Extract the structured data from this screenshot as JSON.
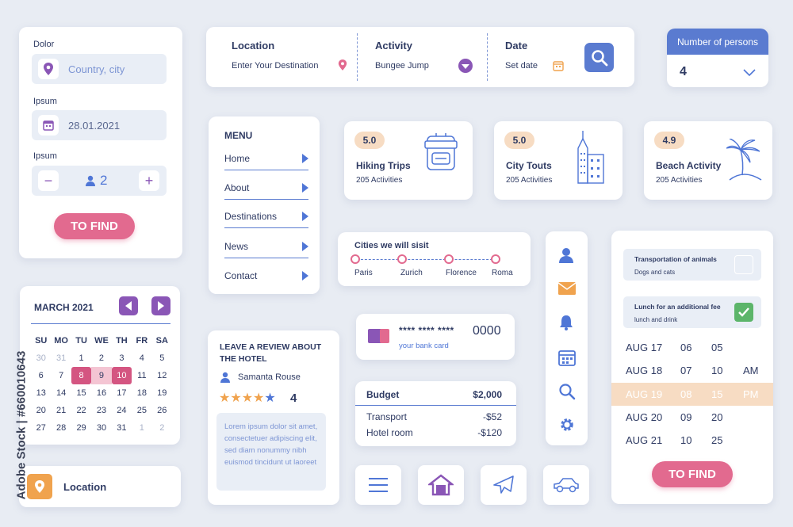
{
  "search_card": {
    "dolor_label": "Dolor",
    "country_placeholder": "Country, city",
    "ipsum_label_1": "Ipsum",
    "date_value": "28.01.2021",
    "ipsum_label_2": "Ipsum",
    "minus": "−",
    "persons_count": "2",
    "plus": "+",
    "find_button": "TO FIND"
  },
  "top_bar": {
    "location_title": "Location",
    "location_placeholder": "Enter Your Destination",
    "activity_title": "Activity",
    "activity_value": "Bungee Jump",
    "date_title": "Date",
    "date_placeholder": "Set date"
  },
  "persons_card": {
    "title": "Number of persons",
    "value": "4"
  },
  "menu": {
    "title": "MENU",
    "items": [
      "Home",
      "About",
      "Destinations",
      "News",
      "Contact"
    ]
  },
  "activities": [
    {
      "rating": "5.0",
      "title": "Hiking Trips",
      "sub": "205 Activities",
      "icon": "backpack-icon"
    },
    {
      "rating": "5.0",
      "title": "City Touts",
      "sub": "205 Activities",
      "icon": "skyscraper-icon"
    },
    {
      "rating": "4.9",
      "title": "Beach Activity",
      "sub": "205 Activities",
      "icon": "palm-island-icon"
    }
  ],
  "cities": {
    "title": "Cities we will sisit",
    "items": [
      "Paris",
      "Zurich",
      "Florence",
      "Roma"
    ]
  },
  "calendar": {
    "month": "MARCH 2021",
    "weekdays": [
      "SU",
      "MO",
      "TU",
      "WE",
      "TH",
      "FR",
      "SA"
    ],
    "days": [
      "30",
      "31",
      "1",
      "2",
      "3",
      "4",
      "5",
      "6",
      "7",
      "8",
      "9",
      "10",
      "11",
      "12",
      "13",
      "14",
      "15",
      "16",
      "17",
      "18",
      "19",
      "20",
      "21",
      "22",
      "23",
      "24",
      "25",
      "26",
      "27",
      "28",
      "29",
      "30",
      "31",
      "1",
      "2"
    ]
  },
  "location_card": {
    "label": "Location"
  },
  "review": {
    "title": "LEAVE A REVIEW ABOUT THE HOTEL",
    "author": "Samanta Rouse",
    "score": "4",
    "text": "Lorem ipsum dolor sit amet, consectetuer adipiscing elit, sed diam nonummy nibh euismod tincidunt ut laoreet"
  },
  "bank_card": {
    "masked": "**** **** ****",
    "last4": "0000",
    "caption": "your bank card"
  },
  "budget": {
    "title": "Budget",
    "total": "$2,000",
    "rows": [
      {
        "label": "Transport",
        "amount": "-$52"
      },
      {
        "label": "Hotel room",
        "amount": "-$120"
      }
    ]
  },
  "options": {
    "items": [
      {
        "title": "Transportation of animals",
        "sub": "Dogs and cats",
        "checked": false
      },
      {
        "title": "Lunch for an additional fee",
        "sub": "lunch and drink",
        "checked": true
      }
    ],
    "times": [
      {
        "date": "AUG 17",
        "h": "06",
        "m": "05",
        "ampm": ""
      },
      {
        "date": "AUG 18",
        "h": "07",
        "m": "10",
        "ampm": "AM"
      },
      {
        "date": "AUG 19",
        "h": "08",
        "m": "15",
        "ampm": "PM"
      },
      {
        "date": "AUG 20",
        "h": "09",
        "m": "20",
        "ampm": ""
      },
      {
        "date": "AUG 21",
        "h": "10",
        "m": "25",
        "ampm": ""
      }
    ],
    "find_button": "TO FIND"
  },
  "watermark": "Adobe Stock | #660010643",
  "colors": {
    "accent_pink": "#e26a8f",
    "accent_blue": "#4f76d6",
    "accent_purple": "#8a56b6",
    "accent_orange": "#f0a34e",
    "peach": "#f7dcc3"
  }
}
